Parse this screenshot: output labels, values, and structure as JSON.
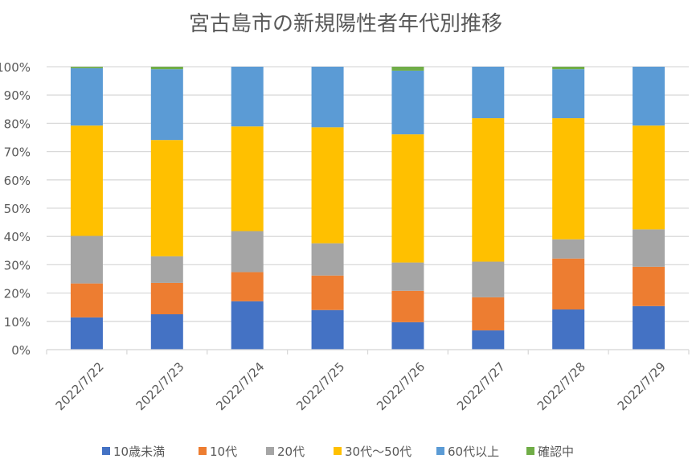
{
  "chart_data": {
    "type": "bar",
    "stacked": "percent",
    "title": "宮古島市の新規陽性者年代別推移",
    "categories": [
      "2022/7/22",
      "2022/7/23",
      "2022/7/24",
      "2022/7/25",
      "2022/7/26",
      "2022/7/27",
      "2022/7/28",
      "2022/7/29"
    ],
    "ylim": [
      0,
      100
    ],
    "yticks": [
      "0%",
      "10%",
      "20%",
      "30%",
      "40%",
      "50%",
      "60%",
      "70%",
      "80%",
      "90%",
      "100%"
    ],
    "grid": true,
    "legend": "bottom",
    "series": [
      {
        "name": "10歳未満",
        "color": "#4472C4",
        "values": [
          11.4,
          12.5,
          17.1,
          14.0,
          9.7,
          6.8,
          14.2,
          15.4
        ]
      },
      {
        "name": "10代",
        "color": "#ED7D31",
        "values": [
          12.0,
          11.1,
          10.3,
          12.2,
          11.1,
          11.7,
          18.0,
          13.9
        ]
      },
      {
        "name": "20代",
        "color": "#A5A5A5",
        "values": [
          16.8,
          9.4,
          14.5,
          11.4,
          10.0,
          12.6,
          6.8,
          13.2
        ]
      },
      {
        "name": "30代～50代",
        "color": "#FFC000",
        "values": [
          39.0,
          41.1,
          37.0,
          41.0,
          45.3,
          50.7,
          42.8,
          36.7
        ]
      },
      {
        "name": "60代以上",
        "color": "#5B9BD5",
        "values": [
          20.3,
          25.0,
          21.1,
          21.4,
          22.5,
          18.2,
          17.3,
          20.8
        ]
      },
      {
        "name": "確認中",
        "color": "#70AD47",
        "values": [
          0.5,
          0.9,
          0,
          0,
          1.4,
          0,
          0.9,
          0
        ]
      }
    ]
  }
}
